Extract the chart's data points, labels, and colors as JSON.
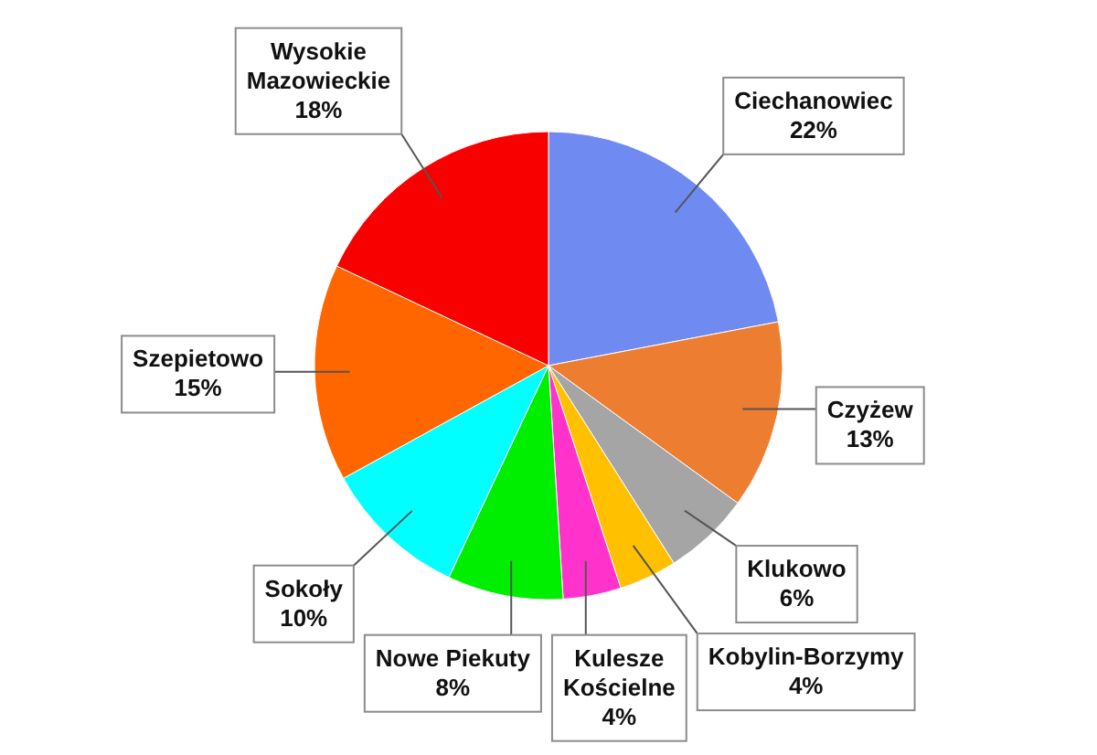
{
  "chart_data": {
    "type": "pie",
    "categories": [
      "Ciechanowiec",
      "Czyżew",
      "Klukowo",
      "Kobylin-Borzymy",
      "Kulesze Kościelne",
      "Nowe Piekuty",
      "Sokoły",
      "Szepietowo",
      "Wysokie Mazowieckie"
    ],
    "values": [
      22,
      13,
      6,
      4,
      4,
      8,
      10,
      15,
      18
    ],
    "colors": [
      "#6f8af0",
      "#ed7d31",
      "#a5a5a5",
      "#ffc000",
      "#ff33cc",
      "#00ee00",
      "#00ffff",
      "#ff6600",
      "#f80000"
    ],
    "value_labels": [
      "22%",
      "13%",
      "6%",
      "4%",
      "4%",
      "8%",
      "10%",
      "15%",
      "18%"
    ]
  }
}
